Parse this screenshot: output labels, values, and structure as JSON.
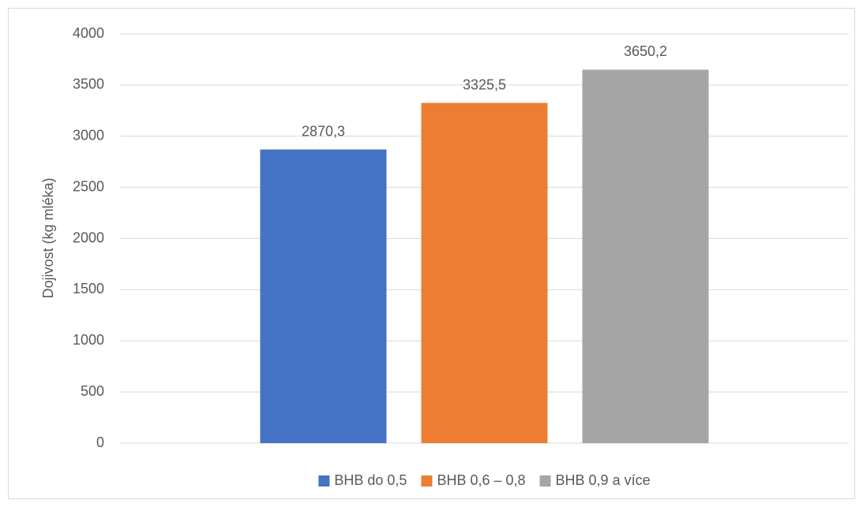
{
  "chart_data": {
    "type": "bar",
    "ylabel": "Dojivost (kg mléka)",
    "categories": [
      null
    ],
    "series": [
      {
        "name": "BHB do 0,5",
        "color": "#4472c4",
        "values": [
          2870.3
        ],
        "value_labels": [
          "2870,3"
        ]
      },
      {
        "name": "BHB 0,6 – 0,8",
        "color": "#ed7d31",
        "values": [
          3325.5
        ],
        "value_labels": [
          "3325,5"
        ]
      },
      {
        "name": "BHB 0,9 a více",
        "color": "#a5a5a5",
        "values": [
          3650.2
        ],
        "value_labels": [
          "3650,2"
        ]
      }
    ],
    "ylim": [
      0,
      4000
    ],
    "yticks": [
      0,
      500,
      1000,
      1500,
      2000,
      2500,
      3000,
      3500,
      4000
    ],
    "grid": true,
    "legend": "bottom"
  }
}
